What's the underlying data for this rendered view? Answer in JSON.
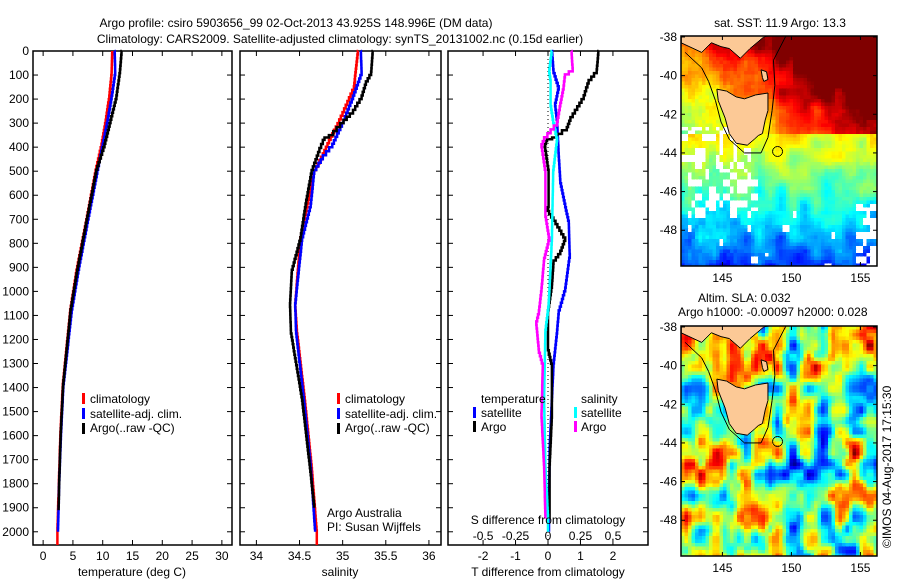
{
  "title": {
    "line1": "Argo profile: csiro 5903656_99 02-Oct-2013 43.925S 148.996E (DM data)",
    "line2": "Climatology: CARS2009. Satellite-adjusted climatology: synTS_20131002.nc (0.15d earlier)"
  },
  "depth_axis": {
    "ticks": [
      "0",
      "100",
      "200",
      "300",
      "400",
      "500",
      "600",
      "700",
      "800",
      "900",
      "1000",
      "1100",
      "1200",
      "1300",
      "1400",
      "1500",
      "1600",
      "1700",
      "1800",
      "1900",
      "2000"
    ],
    "range": [
      0,
      2055
    ]
  },
  "chart_data": [
    {
      "type": "line",
      "id": "temperature",
      "xlabel": "temperature (deg C)",
      "ylabel": "depth",
      "xlim": [
        -1.7,
        31.7
      ],
      "xticks": [
        0,
        5,
        10,
        15,
        20,
        25,
        30
      ],
      "xtick_labels": [
        "0",
        "5",
        "10",
        "15",
        "20",
        "25",
        "30"
      ],
      "legend": [
        "climatology",
        "satellite-adj. clim.",
        "Argo(..raw -QC)"
      ],
      "series": [
        {
          "name": "climatology",
          "color": "#ff0000",
          "depth": [
            0,
            100,
            200,
            300,
            400,
            510,
            715,
            925,
            1090,
            1400,
            1600,
            1800,
            2000,
            2055
          ],
          "values": [
            11.6,
            11.5,
            11.1,
            10.5,
            9.8,
            8.8,
            7.25,
            5.6,
            4.55,
            3.3,
            2.9,
            2.65,
            2.4,
            2.4
          ]
        },
        {
          "name": "satellite-adj. clim.",
          "color": "#0000ff",
          "depth": [
            0,
            100,
            200,
            300,
            400,
            510,
            715,
            925,
            1090,
            1400,
            1600,
            1800,
            2000
          ],
          "values": [
            12.0,
            12.1,
            11.5,
            10.8,
            10.0,
            9.1,
            7.5,
            5.9,
            4.8,
            3.4,
            3.0,
            2.7,
            2.5
          ]
        },
        {
          "name": "Argo(..raw -QC)",
          "color": "#000000",
          "depth": [
            0,
            92,
            200,
            300,
            400,
            510,
            715,
            925,
            1090,
            1400,
            1600,
            1800,
            1910
          ],
          "values": [
            13.2,
            12.9,
            12.3,
            11.3,
            10.3,
            8.9,
            7.3,
            5.7,
            4.6,
            3.35,
            2.95,
            2.7,
            2.6
          ]
        }
      ]
    },
    {
      "type": "line",
      "id": "salinity",
      "xlabel": "salinity",
      "ylabel": "depth",
      "xlim": [
        33.81,
        36.14
      ],
      "xticks": [
        34,
        34.5,
        35,
        35.5,
        36
      ],
      "xtick_labels": [
        "34",
        "34.5",
        "35",
        "35.5",
        "36"
      ],
      "legend": [
        "climatology",
        "satellite-adj. clim.",
        "Argo(..raw -QC)"
      ],
      "annotation": [
        "Argo Australia",
        "PI: Susan Wijffels"
      ],
      "series": [
        {
          "name": "climatology",
          "color": "#ff0000",
          "depth": [
            0,
            162,
            300,
            370,
            440,
            510,
            650,
            790,
            925,
            1065,
            1175,
            1455,
            1735,
            2010,
            2055
          ],
          "values": [
            35.18,
            35.13,
            34.96,
            34.86,
            34.77,
            34.67,
            34.59,
            34.51,
            34.48,
            34.45,
            34.47,
            34.56,
            34.64,
            34.7,
            34.7
          ]
        },
        {
          "name": "satellite-adj. clim.",
          "color": "#0000ff",
          "depth": [
            0,
            100,
            200,
            300,
            400,
            450,
            510,
            650,
            790,
            925,
            1065,
            1175,
            1455,
            1735,
            2000
          ],
          "values": [
            35.21,
            35.22,
            35.12,
            35.01,
            34.88,
            34.77,
            34.67,
            34.63,
            34.53,
            34.49,
            34.45,
            34.46,
            34.55,
            34.63,
            34.68
          ]
        },
        {
          "name": "Argo(..raw -QC)",
          "color": "#000000",
          "depth": [
            0,
            100,
            140,
            200,
            260,
            300,
            350,
            370,
            420,
            510,
            650,
            790,
            925,
            1065,
            1175,
            1455,
            1735,
            1900
          ],
          "values": [
            35.35,
            35.33,
            35.27,
            35.22,
            35.12,
            35.01,
            34.89,
            34.79,
            34.73,
            34.64,
            34.57,
            34.51,
            34.41,
            34.39,
            34.4,
            34.53,
            34.62,
            34.67
          ]
        }
      ]
    },
    {
      "type": "line",
      "id": "difference",
      "xlabel": "T difference from climatology",
      "xlim": [
        -3.08,
        3.08
      ],
      "xticks": [
        -2,
        -1,
        0,
        1,
        2
      ],
      "xtick_labels": [
        "-2",
        "-1",
        "0",
        "1",
        "2"
      ],
      "x2label": "S difference from climatology",
      "x2lim": [
        -0.77,
        0.77
      ],
      "x2ticks": [
        -0.5,
        -0.25,
        0,
        0.25,
        0.5
      ],
      "x2tick_labels": [
        "-0.5",
        "-0.25",
        "0",
        "0.25",
        "0.5"
      ],
      "legend_groups": [
        {
          "title": "temperature",
          "items": [
            "satellite",
            "Argo"
          ]
        },
        {
          "title": "salinity",
          "items": [
            "satellite",
            "Argo"
          ]
        }
      ],
      "series": [
        {
          "name": "temperature satellite",
          "axis": "T",
          "color": "#0000ff",
          "depth": [
            0,
            92,
            160,
            230,
            300,
            440,
            550,
            650,
            720,
            860,
            1000,
            1095,
            1175,
            1315,
            1455,
            1665,
            1945,
            2000
          ],
          "values": [
            0.12,
            0.17,
            0.33,
            0.22,
            0.28,
            0.33,
            0.38,
            0.53,
            0.64,
            0.67,
            0.53,
            0.33,
            0.28,
            0.17,
            0.12,
            0.05,
            0.03,
            0.03
          ]
        },
        {
          "name": "temperature Argo",
          "axis": "T",
          "color": "#000000",
          "depth": [
            0,
            92,
            135,
            200,
            245,
            290,
            330,
            360,
            375,
            400,
            510,
            650,
            665,
            720,
            790,
            845,
            885,
            985,
            1095,
            1245,
            1315,
            1525,
            1735,
            1945
          ],
          "values": [
            1.56,
            1.5,
            1.25,
            1.1,
            0.9,
            0.69,
            0.58,
            0.28,
            -0.03,
            -0.1,
            0.02,
            0.02,
            -0.03,
            0.23,
            0.53,
            0.38,
            0.17,
            0.12,
            0.0,
            0.0,
            0.12,
            0.12,
            0.05,
            0.05
          ]
        },
        {
          "name": "salinity satellite",
          "axis": "S",
          "color": "#00ffff",
          "depth": [
            0,
            92,
            135,
            230,
            300,
            375,
            510,
            790,
            1065,
            1175,
            1455,
            1735,
            1945,
            2000
          ],
          "values": [
            0.03,
            0.01,
            0.02,
            0.02,
            0.04,
            0.07,
            0.04,
            0.03,
            0.005,
            -0.02,
            -0.03,
            -0.02,
            0.0,
            0.0
          ]
        },
        {
          "name": "salinity Argo",
          "axis": "S",
          "color": "#ff00ff",
          "depth": [
            0,
            85,
            110,
            160,
            230,
            310,
            375,
            400,
            510,
            690,
            790,
            875,
            1000,
            1095,
            1140,
            1255,
            1315,
            1525,
            1735,
            1945
          ],
          "values": [
            0.18,
            0.19,
            0.13,
            0.12,
            0.095,
            0.07,
            -0.03,
            -0.05,
            -0.02,
            -0.02,
            0.01,
            -0.03,
            -0.05,
            -0.07,
            -0.09,
            -0.07,
            -0.04,
            -0.05,
            -0.03,
            -0.02
          ]
        }
      ]
    }
  ],
  "maps": [
    {
      "id": "sst",
      "title": "sat. SST: 11.9 Argo: 13.3",
      "lon_ticks": [
        "145",
        "150",
        "155"
      ],
      "lat_ticks": [
        "-38",
        "-40",
        "-42",
        "-44",
        "-46",
        "-48"
      ]
    },
    {
      "id": "sla",
      "title_line1": "Altim. SLA: 0.032",
      "title_line2": "Argo h1000: -0.00097 h2000: 0.028",
      "lon_ticks": [
        "145",
        "150",
        "155"
      ],
      "lat_ticks": [
        "-38",
        "-40",
        "-42",
        "-44",
        "-46",
        "-48"
      ]
    }
  ],
  "profile_location": {
    "lon": 148.996,
    "lat": -43.925
  },
  "credit": "©IMOS 04-Aug-2017 17:15:30"
}
